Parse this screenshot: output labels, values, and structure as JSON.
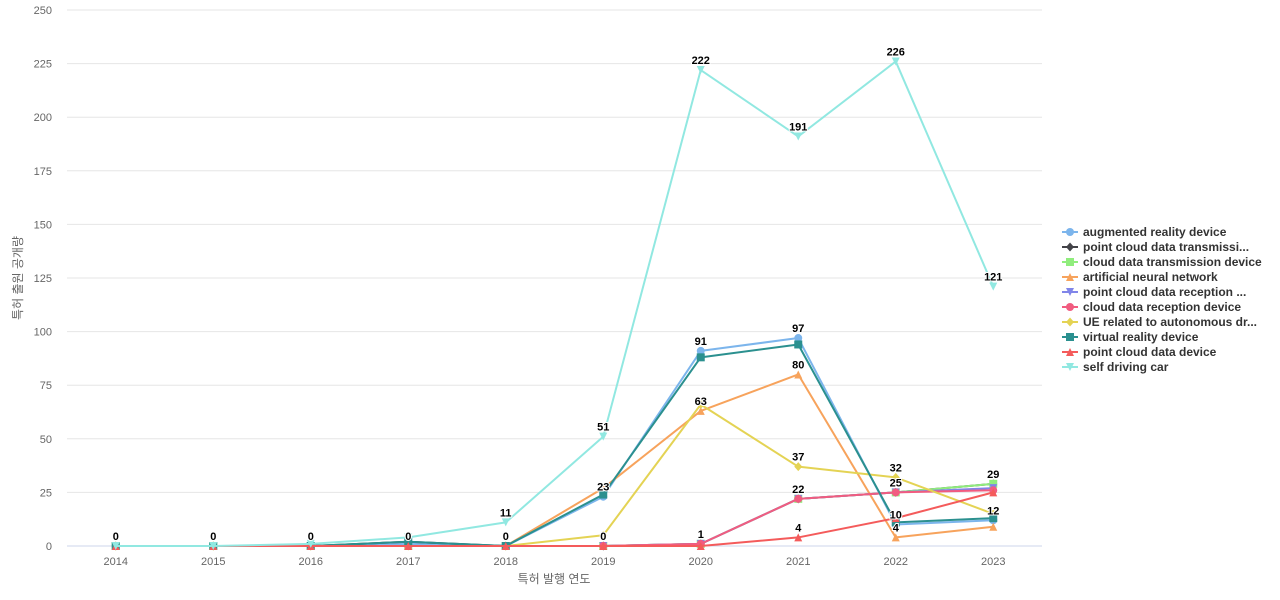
{
  "chart_data": {
    "type": "line",
    "xlabel": "특허 발행 연도",
    "ylabel": "특허 출원 공개량",
    "ylim": [
      0,
      250
    ],
    "yticks": [
      0,
      25,
      50,
      75,
      100,
      125,
      150,
      175,
      200,
      225,
      250
    ],
    "categories": [
      "2014",
      "2015",
      "2016",
      "2017",
      "2018",
      "2019",
      "2020",
      "2021",
      "2022",
      "2023"
    ],
    "grid": true,
    "legend_position": "right",
    "series": [
      {
        "name": "augmented reality device",
        "color": "#7cb5ec",
        "marker": "circle",
        "values": [
          0,
          0,
          0,
          1,
          0,
          23,
          91,
          97,
          10,
          12
        ]
      },
      {
        "name": "point cloud data transmissi...",
        "color": "#434348",
        "marker": "diamond",
        "values": [
          0,
          0,
          0,
          2,
          0,
          0,
          1,
          22,
          25,
          29
        ]
      },
      {
        "name": "cloud data transmission device",
        "color": "#90ed7d",
        "marker": "square",
        "values": [
          0,
          0,
          0,
          0,
          0,
          0,
          1,
          22,
          25,
          29
        ]
      },
      {
        "name": "artificial neural network",
        "color": "#f7a35c",
        "marker": "triangle",
        "values": [
          0,
          0,
          0,
          0,
          0,
          27,
          63,
          80,
          4,
          9
        ]
      },
      {
        "name": "point cloud data reception ...",
        "color": "#8085e9",
        "marker": "triangle-down",
        "values": [
          0,
          0,
          0,
          0,
          0,
          0,
          1,
          22,
          25,
          27
        ]
      },
      {
        "name": "cloud data reception device",
        "color": "#f15c80",
        "marker": "circle",
        "values": [
          0,
          0,
          0,
          0,
          0,
          0,
          1,
          22,
          25,
          26
        ]
      },
      {
        "name": "UE related to autonomous dr...",
        "color": "#e4d354",
        "marker": "diamond",
        "values": [
          0,
          0,
          0,
          0,
          0,
          5,
          66,
          37,
          32,
          15
        ]
      },
      {
        "name": "virtual reality device",
        "color": "#2b908f",
        "marker": "square",
        "values": [
          0,
          0,
          0,
          2,
          0,
          24,
          88,
          94,
          11,
          13
        ]
      },
      {
        "name": "point cloud data device",
        "color": "#f45b5b",
        "marker": "triangle",
        "values": [
          0,
          0,
          0,
          0,
          0,
          0,
          0,
          4,
          13,
          25
        ]
      },
      {
        "name": "self driving car",
        "color": "#91e8e1",
        "marker": "triangle-down",
        "values": [
          0,
          0,
          1,
          4,
          11,
          51,
          222,
          191,
          226,
          121
        ]
      }
    ],
    "annotations": [
      {
        "category": "2014",
        "value": 0,
        "text": "0"
      },
      {
        "category": "2015",
        "value": 0,
        "text": "0"
      },
      {
        "category": "2016",
        "value": 0,
        "text": "0"
      },
      {
        "category": "2017",
        "value": 0,
        "text": "0"
      },
      {
        "category": "2018",
        "value": 0,
        "text": "0"
      },
      {
        "category": "2019",
        "value": 0,
        "text": "0"
      },
      {
        "category": "2018",
        "value": 11,
        "text": "11"
      },
      {
        "category": "2019",
        "value": 51,
        "text": "51"
      },
      {
        "category": "2019",
        "value": 23,
        "text": "23"
      },
      {
        "category": "2020",
        "value": 222,
        "text": "222"
      },
      {
        "category": "2020",
        "value": 91,
        "text": "91"
      },
      {
        "category": "2020",
        "value": 63,
        "text": "63"
      },
      {
        "category": "2020",
        "value": 1,
        "text": "1"
      },
      {
        "category": "2021",
        "value": 191,
        "text": "191"
      },
      {
        "category": "2021",
        "value": 97,
        "text": "97"
      },
      {
        "category": "2021",
        "value": 80,
        "text": "80"
      },
      {
        "category": "2021",
        "value": 37,
        "text": "37"
      },
      {
        "category": "2021",
        "value": 22,
        "text": "22"
      },
      {
        "category": "2021",
        "value": 4,
        "text": "4"
      },
      {
        "category": "2022",
        "value": 226,
        "text": "226"
      },
      {
        "category": "2022",
        "value": 32,
        "text": "32"
      },
      {
        "category": "2022",
        "value": 25,
        "text": "25"
      },
      {
        "category": "2022",
        "value": 10,
        "text": "10"
      },
      {
        "category": "2022",
        "value": 4,
        "text": "4"
      },
      {
        "category": "2023",
        "value": 121,
        "text": "121"
      },
      {
        "category": "2023",
        "value": 29,
        "text": "29"
      },
      {
        "category": "2023",
        "value": 12,
        "text": "12"
      }
    ]
  }
}
